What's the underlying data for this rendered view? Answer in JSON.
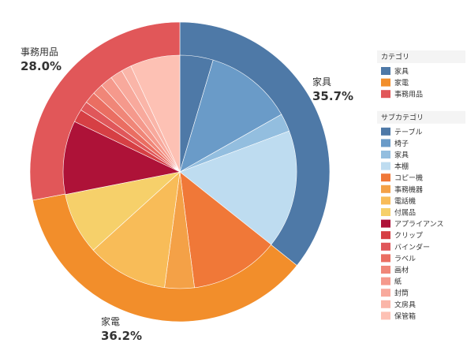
{
  "chart_data": {
    "type": "pie",
    "title": "",
    "start_angle_deg": 0,
    "outer_ring": {
      "categories": [
        {
          "name": "家具",
          "percent_label": "35.7%",
          "value": 35.7,
          "color": "#4E79A7"
        },
        {
          "name": "家電",
          "percent_label": "36.2%",
          "value": 36.2,
          "color": "#F28E2B"
        },
        {
          "name": "事務用品",
          "percent_label": "28.0%",
          "value": 28.0,
          "color": "#E15759"
        }
      ]
    },
    "inner_pie": {
      "slices": [
        {
          "name": "テーブル",
          "value": 4.6,
          "color": "#4E79A7",
          "category": "家具"
        },
        {
          "name": "椅子",
          "value": 12.2,
          "color": "#6A9BC8",
          "category": "家具"
        },
        {
          "name": "家具",
          "value": 2.5,
          "color": "#93BEDF",
          "category": "家具"
        },
        {
          "name": "本棚",
          "value": 16.4,
          "color": "#BEDCF0",
          "category": "家具"
        },
        {
          "name": "コピー機",
          "value": 12.3,
          "color": "#F07838",
          "category": "家電"
        },
        {
          "name": "事務機器",
          "value": 4.1,
          "color": "#F4A147",
          "category": "家電"
        },
        {
          "name": "電話機",
          "value": 11.2,
          "color": "#F8BC58",
          "category": "家電"
        },
        {
          "name": "付属品",
          "value": 8.6,
          "color": "#F6D06A",
          "category": "家電"
        },
        {
          "name": "アプライアンス",
          "value": 10.2,
          "color": "#AE1238",
          "category": "事務用品"
        },
        {
          "name": "クリップ",
          "value": 1.8,
          "color": "#D63F44",
          "category": "事務用品"
        },
        {
          "name": "バインダー",
          "value": 1.3,
          "color": "#E0575A",
          "category": "事務用品"
        },
        {
          "name": "ラベル",
          "value": 1.6,
          "color": "#EA6E62",
          "category": "事務用品"
        },
        {
          "name": "画材",
          "value": 1.5,
          "color": "#F08678",
          "category": "事務用品"
        },
        {
          "name": "紙",
          "value": 1.7,
          "color": "#F5998C",
          "category": "事務用品"
        },
        {
          "name": "封筒",
          "value": 1.7,
          "color": "#F8A99C",
          "category": "事務用品"
        },
        {
          "name": "文房具",
          "value": 1.4,
          "color": "#FAB5A8",
          "category": "事務用品"
        },
        {
          "name": "保管箱",
          "value": 6.9,
          "color": "#FDC1B4",
          "category": "事務用品"
        }
      ]
    },
    "legend": {
      "placement": "right",
      "groups": [
        {
          "title": "カテゴリ",
          "items": [
            {
              "label": "家具",
              "color": "#4E79A7"
            },
            {
              "label": "家電",
              "color": "#F28E2B"
            },
            {
              "label": "事務用品",
              "color": "#E15759"
            }
          ]
        },
        {
          "title": "サブカテゴリ",
          "items": [
            {
              "label": "テーブル",
              "color": "#4E79A7"
            },
            {
              "label": "椅子",
              "color": "#6A9BC8"
            },
            {
              "label": "家具",
              "color": "#93BEDF"
            },
            {
              "label": "本棚",
              "color": "#BEDCF0"
            },
            {
              "label": "コピー機",
              "color": "#F07838"
            },
            {
              "label": "事務機器",
              "color": "#F4A147"
            },
            {
              "label": "電話機",
              "color": "#F8BC58"
            },
            {
              "label": "付属品",
              "color": "#F6D06A"
            },
            {
              "label": "アプライアンス",
              "color": "#AE1238"
            },
            {
              "label": "クリップ",
              "color": "#D63F44"
            },
            {
              "label": "バインダー",
              "color": "#E0575A"
            },
            {
              "label": "ラベル",
              "color": "#EA6E62"
            },
            {
              "label": "画材",
              "color": "#F08678"
            },
            {
              "label": "紙",
              "color": "#F5998C"
            },
            {
              "label": "封筒",
              "color": "#F8A99C"
            },
            {
              "label": "文房具",
              "color": "#FAB5A8"
            },
            {
              "label": "保管箱",
              "color": "#FDC1B4"
            }
          ]
        }
      ]
    }
  }
}
